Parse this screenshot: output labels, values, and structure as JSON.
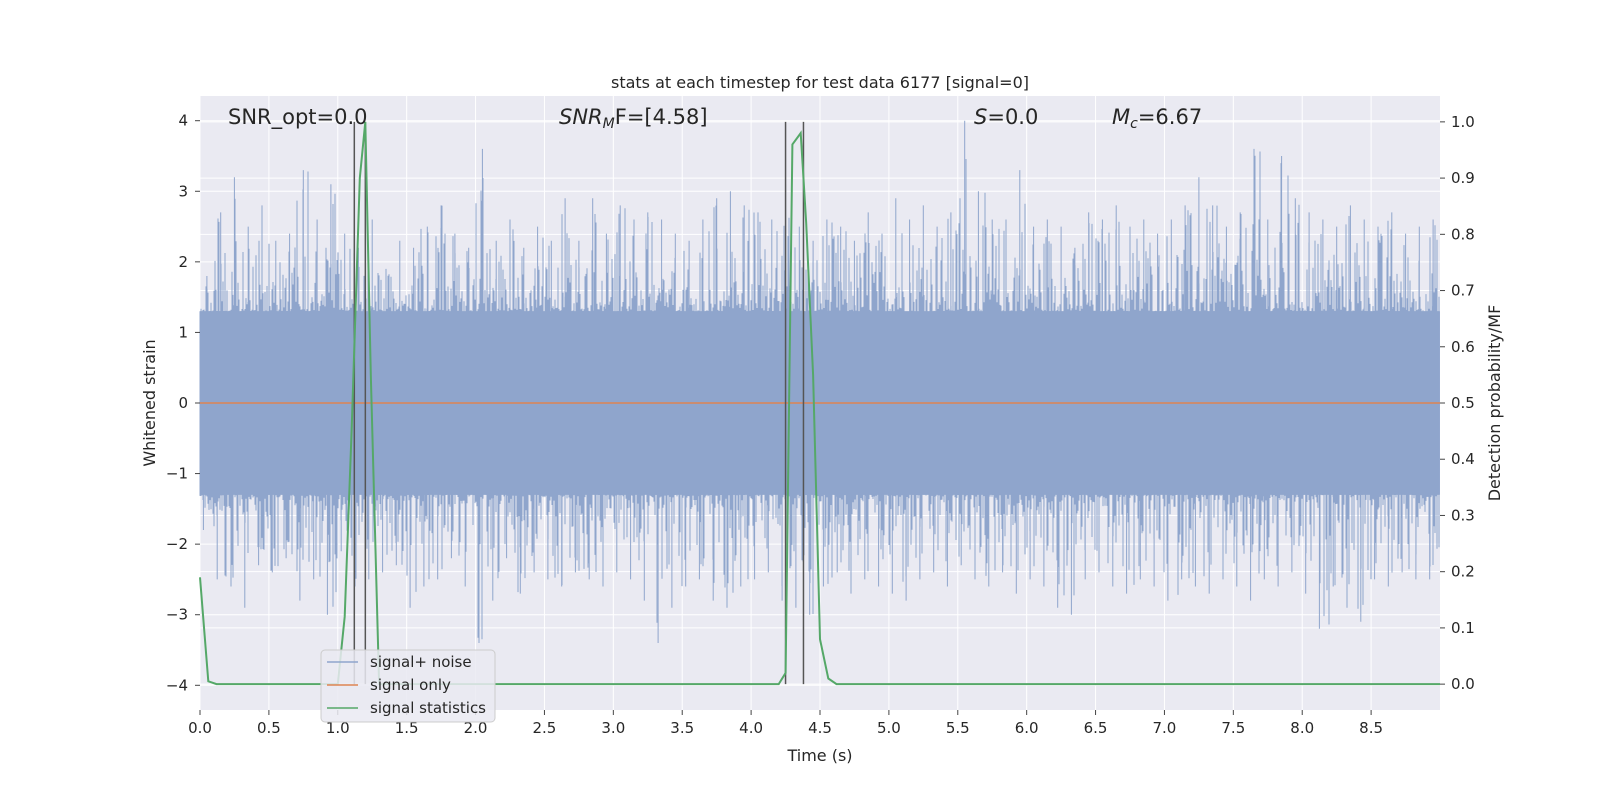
{
  "chart_data": {
    "type": "line",
    "title": "stats at each timestep for test data 6177 [signal=0]",
    "xlabel": "Time (s)",
    "ylabel_left": "Whitened strain",
    "ylabel_right": "Detection probability/MF",
    "xlim": [
      0.0,
      9.0
    ],
    "ylim_left": [
      -4.35,
      4.35
    ],
    "ylim_right": [
      -0.046,
      1.046
    ],
    "grid": true,
    "xticks": [
      "0.0",
      "0.5",
      "1.0",
      "1.5",
      "2.0",
      "2.5",
      "3.0",
      "3.5",
      "4.0",
      "4.5",
      "5.0",
      "5.5",
      "6.0",
      "6.5",
      "7.0",
      "7.5",
      "8.0",
      "8.5"
    ],
    "yticks_left": [
      "4",
      "3",
      "2",
      "1",
      "0",
      "−1",
      "−2",
      "−3",
      "−4"
    ],
    "yticks_right": [
      "1.0",
      "0.9",
      "0.8",
      "0.7",
      "0.6",
      "0.5",
      "0.4",
      "0.3",
      "0.2",
      "0.1",
      "0.0"
    ],
    "annotations": {
      "snr_opt": "SNR_opt=0.0",
      "snr_mf_main": "SNR",
      "snr_mf_sub": "M",
      "snr_mf_rest": "F=[4.58]",
      "s_italic": "S",
      "s_rest": "=0.0",
      "mc_italic": "M",
      "mc_sub": "c",
      "mc_rest": "=6.67"
    },
    "legend": {
      "placement": "lower-left",
      "entries": [
        "signal+ noise",
        "signal only",
        "signal statistics"
      ]
    },
    "colors": {
      "noise": "#8fa5cc",
      "signal_only": "#dd8452",
      "statistics": "#55a868",
      "vlines": "#555555",
      "axes_bg": "#eaeaf2",
      "grid": "#ffffff"
    },
    "series": [
      {
        "name": "signal+ noise",
        "description_only": "dense whitened noise band, typical range about ±1.5, spikes up to ±4",
        "envelope_upper": [
          1.8,
          2.7,
          3.2,
          2.5,
          2.8,
          2.3,
          2.4,
          3.3,
          2.6,
          3.1,
          2.4,
          2.2,
          2.6,
          1.9,
          2.3,
          2.2,
          2.5,
          2.8,
          2.4,
          2.2,
          3.6,
          2.3,
          2.6,
          2.2,
          2.5,
          2.3,
          2.9,
          2.3,
          2.9,
          2.4,
          2.8,
          2.6,
          2.7,
          2.6,
          2.4,
          2.3,
          2.6,
          2.9,
          3.0,
          2.8,
          2.7,
          2.6,
          3.1,
          2.5,
          2.3,
          2.6,
          2.5,
          2.3,
          2.7,
          2.4,
          2.9,
          2.6,
          2.8,
          2.5,
          2.7,
          4.0,
          3.0,
          2.6,
          2.6,
          3.3,
          2.5,
          2.6,
          2.5,
          2.2,
          2.7,
          2.6,
          2.8,
          2.5,
          2.6,
          2.4,
          2.6,
          2.8,
          3.2,
          2.8,
          2.5,
          2.7,
          3.6,
          2.6,
          3.5,
          2.9,
          2.7,
          2.6,
          2.5,
          2.8,
          2.6,
          2.5,
          2.7,
          2.4,
          2.5,
          2.6
        ],
        "envelope_lower": [
          -1.8,
          -2.5,
          -2.6,
          -2.9,
          -2.3,
          -2.4,
          -2.2,
          -2.8,
          -2.5,
          -3.0,
          -2.1,
          -2.6,
          -2.5,
          -2.4,
          -2.3,
          -2.9,
          -2.6,
          -2.5,
          -2.2,
          -2.6,
          -3.4,
          -2.8,
          -2.2,
          -2.7,
          -2.4,
          -2.5,
          -2.6,
          -2.4,
          -2.5,
          -2.6,
          -2.4,
          -2.5,
          -2.8,
          -3.4,
          -2.9,
          -2.6,
          -2.5,
          -2.8,
          -2.9,
          -2.6,
          -2.5,
          -2.4,
          -2.8,
          -2.9,
          -3.0,
          -2.6,
          -2.4,
          -2.7,
          -2.5,
          -2.6,
          -2.7,
          -2.8,
          -2.5,
          -2.4,
          -2.6,
          -2.3,
          -2.5,
          -2.6,
          -2.4,
          -2.7,
          -2.5,
          -2.6,
          -2.9,
          -3.0,
          -2.5,
          -2.4,
          -2.6,
          -2.7,
          -2.5,
          -2.6,
          -2.8,
          -2.5,
          -2.6,
          -2.7,
          -2.5,
          -2.6,
          -2.8,
          -2.5,
          -2.6,
          -2.4,
          -2.7,
          -3.2,
          -2.6,
          -2.9,
          -3.1,
          -2.5,
          -2.6,
          -2.4,
          -2.5,
          -2.5
        ]
      },
      {
        "name": "signal only",
        "x": [
          0.0,
          9.0
        ],
        "y": [
          0.0,
          0.0
        ]
      },
      {
        "name": "signal statistics",
        "x": [
          0.0,
          0.06,
          0.12,
          0.5,
          1.0,
          1.05,
          1.1,
          1.16,
          1.2,
          1.24,
          1.3,
          1.4,
          1.5,
          2.0,
          2.5,
          3.0,
          3.5,
          4.0,
          4.2,
          4.25,
          4.3,
          4.36,
          4.4,
          4.45,
          4.5,
          4.56,
          4.62,
          5.0,
          6.0,
          7.0,
          8.0,
          9.0
        ],
        "y": [
          0.19,
          0.005,
          0.0,
          0.0,
          0.0,
          0.12,
          0.45,
          0.9,
          1.0,
          0.55,
          0.0,
          0.0,
          0.0,
          0.0,
          0.0,
          0.0,
          0.0,
          0.0,
          0.0,
          0.02,
          0.96,
          0.98,
          0.82,
          0.55,
          0.08,
          0.01,
          0.0,
          0.0,
          0.0,
          0.0,
          0.0,
          0.0
        ]
      }
    ],
    "vlines_x": [
      1.12,
      1.2,
      4.25,
      4.38
    ]
  }
}
